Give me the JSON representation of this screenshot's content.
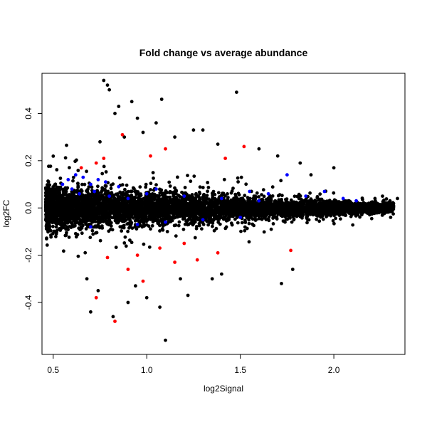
{
  "chart_data": {
    "type": "scatter",
    "title": "Fold change vs average abundance",
    "xlabel": "log2Signal",
    "ylabel": "log2FC",
    "xlim": [
      0.44,
      2.38
    ],
    "ylim": [
      -0.62,
      0.57
    ],
    "x_ticks": [
      0.5,
      1.0,
      1.5,
      2.0
    ],
    "x_tick_labels": [
      "0.5",
      "1.0",
      "1.5",
      "2.0"
    ],
    "y_ticks": [
      -0.4,
      -0.2,
      0.0,
      0.2,
      0.4
    ],
    "y_tick_labels": [
      "-0.4",
      "-0.2",
      "0.0",
      "0.2",
      "0.4"
    ],
    "grid": false,
    "legend": "none",
    "colors": {
      "all": "#000000",
      "blue": "#0000ff",
      "red": "#ff0000"
    },
    "series": [
      {
        "color": "#000000",
        "points": [
          [
            0.77,
            0.54
          ],
          [
            0.79,
            0.52
          ],
          [
            0.8,
            0.5
          ],
          [
            1.48,
            0.49
          ],
          [
            1.08,
            0.46
          ],
          [
            0.92,
            0.45
          ],
          [
            0.85,
            0.43
          ],
          [
            0.83,
            0.4
          ],
          [
            0.95,
            0.38
          ],
          [
            1.05,
            0.36
          ],
          [
            1.25,
            0.33
          ],
          [
            1.3,
            0.33
          ],
          [
            0.88,
            0.3
          ],
          [
            0.98,
            0.32
          ],
          [
            1.15,
            0.3
          ],
          [
            1.38,
            0.27
          ],
          [
            0.75,
            0.28
          ],
          [
            1.6,
            0.25
          ],
          [
            1.7,
            0.22
          ],
          [
            2.0,
            0.17
          ],
          [
            1.82,
            0.19
          ],
          [
            0.7,
            -0.44
          ],
          [
            0.82,
            -0.46
          ],
          [
            1.1,
            -0.56
          ],
          [
            1.0,
            -0.38
          ],
          [
            0.9,
            -0.4
          ],
          [
            1.22,
            -0.37
          ],
          [
            1.35,
            -0.3
          ],
          [
            1.72,
            -0.32
          ],
          [
            1.78,
            -0.26
          ],
          [
            2.22,
            0.04
          ],
          [
            2.3,
            0.03
          ],
          [
            2.34,
            0.04
          ],
          [
            2.26,
            0.05
          ],
          [
            1.4,
            -0.28
          ],
          [
            0.68,
            -0.3
          ],
          [
            0.94,
            -0.33
          ],
          [
            1.07,
            -0.42
          ],
          [
            1.18,
            -0.3
          ],
          [
            0.74,
            -0.35
          ]
        ]
      },
      {
        "color": "#0000ff",
        "points": [
          [
            0.58,
            0.12
          ],
          [
            0.62,
            0.14
          ],
          [
            0.66,
            0.13
          ],
          [
            0.7,
            0.1
          ],
          [
            0.74,
            0.12
          ],
          [
            0.6,
            0.08
          ],
          [
            0.55,
            0.1
          ],
          [
            0.64,
            0.06
          ],
          [
            0.72,
            0.07
          ],
          [
            0.8,
            0.05
          ],
          [
            0.9,
            0.04
          ],
          [
            1.0,
            0.06
          ],
          [
            1.2,
            0.05
          ],
          [
            1.4,
            0.04
          ],
          [
            1.6,
            0.03
          ],
          [
            1.75,
            0.14
          ],
          [
            1.85,
            0.05
          ],
          [
            1.95,
            0.07
          ],
          [
            2.05,
            0.04
          ],
          [
            2.12,
            0.03
          ],
          [
            1.1,
            -0.06
          ],
          [
            0.95,
            -0.07
          ],
          [
            0.7,
            -0.08
          ],
          [
            1.3,
            -0.05
          ],
          [
            1.5,
            -0.04
          ],
          [
            0.85,
            0.09
          ],
          [
            0.78,
            0.11
          ],
          [
            1.05,
            0.08
          ],
          [
            1.55,
            0.07
          ],
          [
            1.65,
            0.06
          ]
        ]
      },
      {
        "color": "#ff0000",
        "points": [
          [
            0.87,
            0.31
          ],
          [
            1.52,
            0.26
          ],
          [
            0.73,
            0.19
          ],
          [
            0.77,
            0.21
          ],
          [
            0.65,
            0.17
          ],
          [
            1.02,
            0.22
          ],
          [
            1.1,
            0.25
          ],
          [
            1.42,
            0.21
          ],
          [
            0.79,
            -0.21
          ],
          [
            0.83,
            -0.48
          ],
          [
            0.73,
            -0.38
          ],
          [
            0.95,
            -0.2
          ],
          [
            1.07,
            -0.17
          ],
          [
            1.2,
            -0.15
          ],
          [
            1.38,
            -0.19
          ],
          [
            1.77,
            -0.18
          ],
          [
            0.9,
            -0.26
          ],
          [
            1.15,
            -0.23
          ],
          [
            0.98,
            -0.31
          ],
          [
            1.27,
            -0.22
          ]
        ]
      }
    ],
    "dense_cloud": {
      "color": "#000000",
      "x_range": [
        0.46,
        2.32
      ],
      "note": "thousands of overlapping black points centered near log2FC 0"
    }
  }
}
